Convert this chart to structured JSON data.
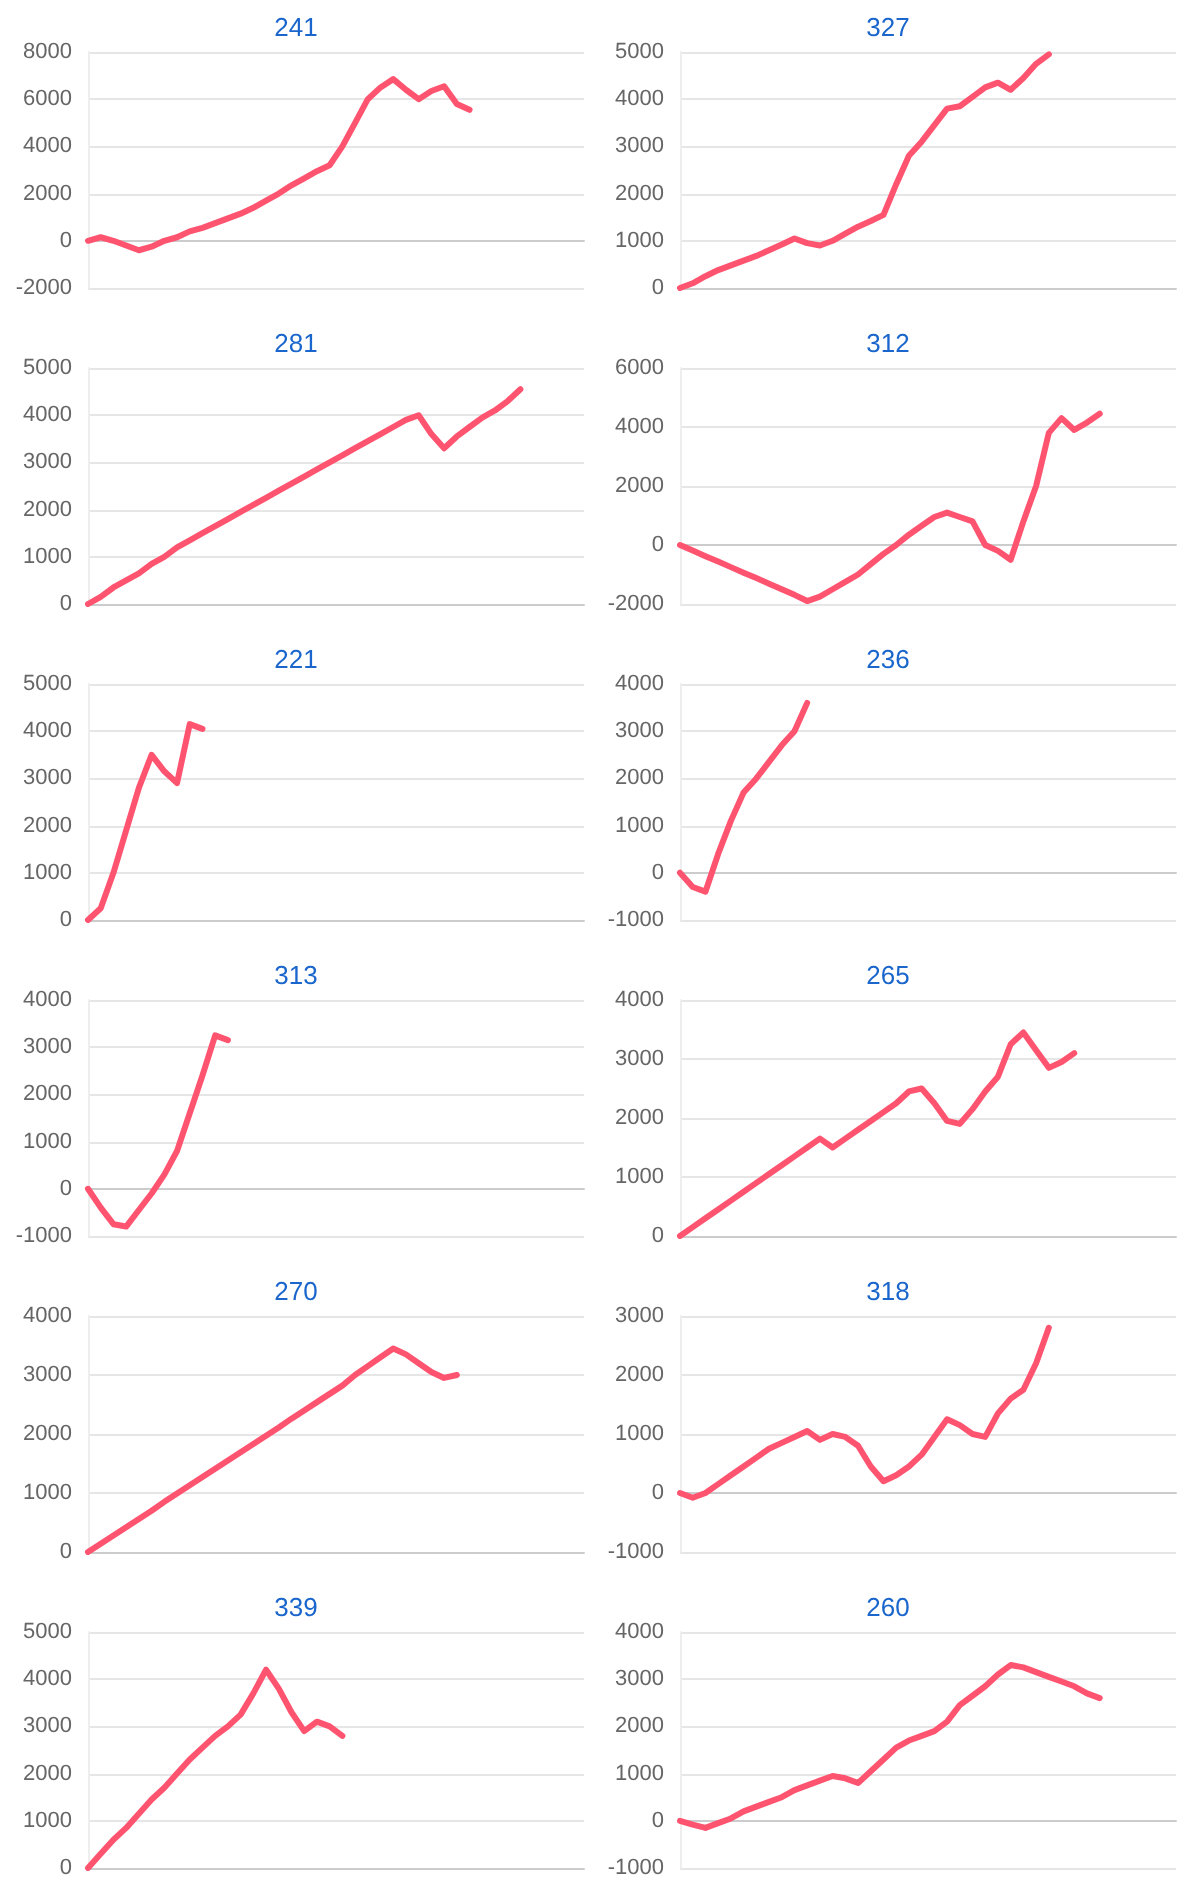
{
  "chart_data": [
    {
      "type": "line",
      "title": "241",
      "color": "#ff5470",
      "line_style": "solid",
      "grid": "y",
      "tick_labels": "y",
      "ylim": [
        -2000,
        8000
      ],
      "yticks": [
        -2000,
        0,
        2000,
        4000,
        6000,
        8000
      ],
      "categories": [
        null,
        null,
        null,
        null,
        null,
        null,
        null,
        null,
        null,
        null,
        null,
        null,
        null,
        null,
        null,
        null,
        null,
        null,
        null,
        null,
        null,
        null,
        null,
        null,
        null,
        null,
        null,
        null,
        null,
        null,
        null,
        null,
        null,
        null,
        null,
        null,
        null,
        null,
        null,
        null
      ],
      "values": [
        0,
        150,
        0,
        -200,
        -400,
        -250,
        0,
        150,
        400,
        550,
        750,
        950,
        1150,
        1400,
        1700,
        2000,
        2350,
        2650,
        2950,
        3200,
        4000,
        5000,
        6000,
        6500,
        6850,
        6400,
        6000,
        6350,
        6550,
        5800,
        5550,
        null,
        null,
        null,
        null,
        null,
        null,
        null,
        null,
        null
      ]
    },
    {
      "type": "line",
      "title": "327",
      "color": "#ff5470",
      "line_style": "solid",
      "grid": "y",
      "tick_labels": "y",
      "ylim": [
        0,
        5000
      ],
      "yticks": [
        0,
        1000,
        2000,
        3000,
        4000,
        5000
      ],
      "categories": [
        null,
        null,
        null,
        null,
        null,
        null,
        null,
        null,
        null,
        null,
        null,
        null,
        null,
        null,
        null,
        null,
        null,
        null,
        null,
        null,
        null,
        null,
        null,
        null,
        null,
        null,
        null,
        null,
        null,
        null,
        null,
        null,
        null,
        null,
        null,
        null,
        null,
        null,
        null,
        null
      ],
      "values": [
        0,
        100,
        250,
        380,
        480,
        580,
        680,
        800,
        920,
        1050,
        950,
        900,
        1000,
        1150,
        1300,
        1420,
        1550,
        2200,
        2800,
        3100,
        3450,
        3800,
        3850,
        4050,
        4250,
        4350,
        4200,
        4450,
        4750,
        4950,
        null,
        null,
        null,
        null,
        null,
        null,
        null,
        null,
        null,
        null
      ]
    },
    {
      "type": "line",
      "title": "281",
      "color": "#ff5470",
      "line_style": "solid",
      "grid": "y",
      "tick_labels": "y",
      "ylim": [
        0,
        5000
      ],
      "yticks": [
        0,
        1000,
        2000,
        3000,
        4000,
        5000
      ],
      "categories": [
        null,
        null,
        null,
        null,
        null,
        null,
        null,
        null,
        null,
        null,
        null,
        null,
        null,
        null,
        null,
        null,
        null,
        null,
        null,
        null,
        null,
        null,
        null,
        null,
        null,
        null,
        null,
        null,
        null,
        null,
        null,
        null,
        null,
        null,
        null,
        null,
        null,
        null,
        null,
        null
      ],
      "values": [
        0,
        150,
        350,
        500,
        650,
        850,
        1000,
        1200,
        1350,
        1500,
        1650,
        1800,
        1950,
        2100,
        2250,
        2400,
        2550,
        2700,
        2850,
        3000,
        3150,
        3300,
        3450,
        3600,
        3750,
        3900,
        4000,
        3600,
        3300,
        3550,
        3750,
        3950,
        4100,
        4300,
        4550,
        null,
        null,
        null,
        null,
        null
      ]
    },
    {
      "type": "line",
      "title": "312",
      "color": "#ff5470",
      "line_style": "solid",
      "grid": "y",
      "tick_labels": "y",
      "ylim": [
        -2000,
        6000
      ],
      "yticks": [
        -2000,
        0,
        2000,
        4000,
        6000
      ],
      "categories": [
        null,
        null,
        null,
        null,
        null,
        null,
        null,
        null,
        null,
        null,
        null,
        null,
        null,
        null,
        null,
        null,
        null,
        null,
        null,
        null,
        null,
        null,
        null,
        null,
        null,
        null,
        null,
        null,
        null,
        null,
        null,
        null,
        null,
        null,
        null,
        null,
        null,
        null,
        null,
        null
      ],
      "values": [
        0,
        -190,
        -380,
        -560,
        -750,
        -940,
        -1120,
        -1310,
        -1500,
        -1690,
        -1900,
        -1750,
        -1500,
        -1250,
        -1000,
        -650,
        -300,
        0,
        350,
        650,
        950,
        1100,
        950,
        800,
        0,
        -200,
        -500,
        800,
        2000,
        3800,
        4300,
        3900,
        4150,
        4450,
        null,
        null,
        null,
        null,
        null,
        null
      ]
    },
    {
      "type": "line",
      "title": "221",
      "color": "#ff5470",
      "line_style": "solid",
      "grid": "y",
      "tick_labels": "y",
      "ylim": [
        0,
        5000
      ],
      "yticks": [
        0,
        1000,
        2000,
        3000,
        4000,
        5000
      ],
      "categories": [
        null,
        null,
        null,
        null,
        null,
        null,
        null,
        null,
        null,
        null,
        null,
        null,
        null,
        null,
        null,
        null,
        null,
        null,
        null,
        null,
        null,
        null,
        null,
        null,
        null,
        null,
        null,
        null,
        null,
        null,
        null,
        null,
        null,
        null,
        null,
        null,
        null,
        null,
        null,
        null
      ],
      "values": [
        0,
        250,
        1000,
        1900,
        2800,
        3500,
        3150,
        2900,
        4150,
        4050,
        null,
        null,
        null,
        null,
        null,
        null,
        null,
        null,
        null,
        null,
        null,
        null,
        null,
        null,
        null,
        null,
        null,
        null,
        null,
        null,
        null,
        null,
        null,
        null,
        null,
        null,
        null,
        null,
        null,
        null
      ]
    },
    {
      "type": "line",
      "title": "236",
      "color": "#ff5470",
      "line_style": "solid",
      "grid": "y",
      "tick_labels": "y",
      "ylim": [
        -1000,
        4000
      ],
      "yticks": [
        -1000,
        0,
        1000,
        2000,
        3000,
        4000
      ],
      "categories": [
        null,
        null,
        null,
        null,
        null,
        null,
        null,
        null,
        null,
        null,
        null,
        null,
        null,
        null,
        null,
        null,
        null,
        null,
        null,
        null,
        null,
        null,
        null,
        null,
        null,
        null,
        null,
        null,
        null,
        null,
        null,
        null,
        null,
        null,
        null,
        null,
        null,
        null,
        null,
        null
      ],
      "values": [
        0,
        -300,
        -400,
        400,
        1100,
        1700,
        2000,
        2350,
        2700,
        3000,
        3600,
        null,
        null,
        null,
        null,
        null,
        null,
        null,
        null,
        null,
        null,
        null,
        null,
        null,
        null,
        null,
        null,
        null,
        null,
        null,
        null,
        null,
        null,
        null,
        null,
        null,
        null,
        null,
        null,
        null
      ]
    },
    {
      "type": "line",
      "title": "313",
      "color": "#ff5470",
      "line_style": "solid",
      "grid": "y",
      "tick_labels": "y",
      "ylim": [
        -1000,
        4000
      ],
      "yticks": [
        -1000,
        0,
        1000,
        2000,
        3000,
        4000
      ],
      "categories": [
        null,
        null,
        null,
        null,
        null,
        null,
        null,
        null,
        null,
        null,
        null,
        null,
        null,
        null,
        null,
        null,
        null,
        null,
        null,
        null,
        null,
        null,
        null,
        null,
        null,
        null,
        null,
        null,
        null,
        null,
        null,
        null,
        null,
        null,
        null,
        null,
        null,
        null,
        null,
        null
      ],
      "values": [
        0,
        -400,
        -750,
        -800,
        -450,
        -100,
        300,
        800,
        1600,
        2400,
        3250,
        3150,
        null,
        null,
        null,
        null,
        null,
        null,
        null,
        null,
        null,
        null,
        null,
        null,
        null,
        null,
        null,
        null,
        null,
        null,
        null,
        null,
        null,
        null,
        null,
        null,
        null,
        null,
        null,
        null
      ]
    },
    {
      "type": "line",
      "title": "265",
      "color": "#ff5470",
      "line_style": "solid",
      "grid": "y",
      "tick_labels": "y",
      "ylim": [
        0,
        4000
      ],
      "yticks": [
        0,
        1000,
        2000,
        3000,
        4000
      ],
      "categories": [
        null,
        null,
        null,
        null,
        null,
        null,
        null,
        null,
        null,
        null,
        null,
        null,
        null,
        null,
        null,
        null,
        null,
        null,
        null,
        null,
        null,
        null,
        null,
        null,
        null,
        null,
        null,
        null,
        null,
        null,
        null,
        null,
        null,
        null,
        null,
        null,
        null,
        null,
        null,
        null
      ],
      "values": [
        0,
        150,
        300,
        450,
        600,
        750,
        900,
        1050,
        1200,
        1350,
        1500,
        1650,
        1500,
        1650,
        1800,
        1950,
        2100,
        2250,
        2450,
        2500,
        2250,
        1950,
        1900,
        2150,
        2450,
        2700,
        3250,
        3450,
        3150,
        2850,
        2950,
        3100,
        null,
        null,
        null,
        null,
        null,
        null,
        null,
        null
      ]
    },
    {
      "type": "line",
      "title": "270",
      "color": "#ff5470",
      "line_style": "solid",
      "grid": "y",
      "tick_labels": "y",
      "ylim": [
        0,
        4000
      ],
      "yticks": [
        0,
        1000,
        2000,
        3000,
        4000
      ],
      "categories": [
        null,
        null,
        null,
        null,
        null,
        null,
        null,
        null,
        null,
        null,
        null,
        null,
        null,
        null,
        null,
        null,
        null,
        null,
        null,
        null,
        null,
        null,
        null,
        null,
        null,
        null,
        null,
        null,
        null,
        null,
        null,
        null,
        null,
        null,
        null,
        null,
        null,
        null,
        null,
        null
      ],
      "values": [
        0,
        140,
        280,
        420,
        560,
        700,
        850,
        990,
        1130,
        1270,
        1410,
        1550,
        1690,
        1830,
        1970,
        2110,
        2260,
        2400,
        2540,
        2680,
        2820,
        3000,
        3150,
        3300,
        3450,
        3350,
        3200,
        3050,
        2950,
        3000,
        null,
        null,
        null,
        null,
        null,
        null,
        null,
        null,
        null,
        null
      ]
    },
    {
      "type": "line",
      "title": "318",
      "color": "#ff5470",
      "line_style": "solid",
      "grid": "y",
      "tick_labels": "y",
      "ylim": [
        -1000,
        3000
      ],
      "yticks": [
        -1000,
        0,
        1000,
        2000,
        3000
      ],
      "categories": [
        null,
        null,
        null,
        null,
        null,
        null,
        null,
        null,
        null,
        null,
        null,
        null,
        null,
        null,
        null,
        null,
        null,
        null,
        null,
        null,
        null,
        null,
        null,
        null,
        null,
        null,
        null,
        null,
        null,
        null,
        null,
        null,
        null,
        null,
        null,
        null,
        null,
        null,
        null,
        null
      ],
      "values": [
        0,
        -80,
        0,
        150,
        300,
        450,
        600,
        750,
        850,
        950,
        1050,
        900,
        1000,
        950,
        800,
        450,
        200,
        300,
        450,
        650,
        950,
        1250,
        1150,
        1000,
        950,
        1350,
        1600,
        1750,
        2200,
        2800,
        null,
        null,
        null,
        null,
        null,
        null,
        null,
        null,
        null,
        null
      ]
    },
    {
      "type": "line",
      "title": "339",
      "color": "#ff5470",
      "line_style": "solid",
      "grid": "y",
      "tick_labels": "y",
      "ylim": [
        0,
        5000
      ],
      "yticks": [
        0,
        1000,
        2000,
        3000,
        4000,
        5000
      ],
      "categories": [
        null,
        null,
        null,
        null,
        null,
        null,
        null,
        null,
        null,
        null,
        null,
        null,
        null,
        null,
        null,
        null,
        null,
        null,
        null,
        null,
        null,
        null,
        null,
        null,
        null,
        null,
        null,
        null,
        null,
        null,
        null,
        null,
        null,
        null,
        null,
        null,
        null,
        null,
        null,
        null
      ],
      "values": [
        0,
        300,
        600,
        850,
        1150,
        1450,
        1700,
        2000,
        2300,
        2550,
        2800,
        3000,
        3250,
        3700,
        4200,
        3800,
        3300,
        2900,
        3100,
        3000,
        2800,
        null,
        null,
        null,
        null,
        null,
        null,
        null,
        null,
        null,
        null,
        null,
        null,
        null,
        null,
        null,
        null,
        null,
        null,
        null
      ]
    },
    {
      "type": "line",
      "title": "260",
      "color": "#ff5470",
      "line_style": "solid",
      "grid": "y",
      "tick_labels": "y",
      "ylim": [
        -1000,
        4000
      ],
      "yticks": [
        -1000,
        0,
        1000,
        2000,
        3000,
        4000
      ],
      "categories": [
        null,
        null,
        null,
        null,
        null,
        null,
        null,
        null,
        null,
        null,
        null,
        null,
        null,
        null,
        null,
        null,
        null,
        null,
        null,
        null,
        null,
        null,
        null,
        null,
        null,
        null,
        null,
        null,
        null,
        null,
        null,
        null,
        null,
        null,
        null,
        null,
        null,
        null,
        null,
        null
      ],
      "values": [
        0,
        -80,
        -150,
        -50,
        50,
        200,
        300,
        400,
        500,
        650,
        750,
        850,
        950,
        900,
        800,
        1050,
        1300,
        1550,
        1700,
        1800,
        1900,
        2100,
        2450,
        2650,
        2850,
        3100,
        3300,
        3250,
        3150,
        3050,
        2950,
        2850,
        2700,
        2600,
        null,
        null,
        null,
        null,
        null,
        null
      ]
    }
  ]
}
